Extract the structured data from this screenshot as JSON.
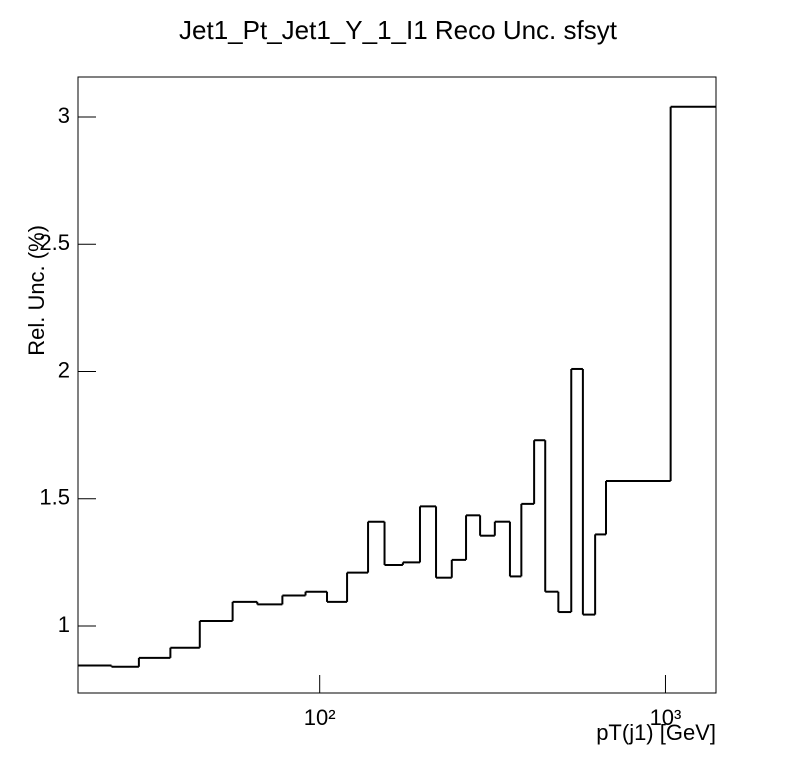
{
  "chart_data": {
    "type": "histogram_step",
    "title": "Jet1_Pt_Jet1_Y_1_I1 Reco Unc. sfsyt",
    "y_label": "Rel. Unc. (%)",
    "x_label": "pT(j1) [GeV]",
    "bins": [
      20,
      25,
      30,
      37,
      45,
      56,
      66,
      78,
      91,
      105,
      120,
      138,
      154,
      174,
      195,
      217,
      241,
      265,
      291,
      321,
      355,
      383,
      417,
      449,
      490,
      534,
      577,
      626,
      673,
      1035,
      1400
    ],
    "values": [
      0.845,
      0.84,
      0.875,
      0.915,
      1.02,
      1.095,
      1.085,
      1.12,
      1.135,
      1.095,
      1.21,
      1.41,
      1.24,
      1.25,
      1.47,
      1.19,
      1.26,
      1.435,
      1.355,
      1.41,
      1.195,
      1.48,
      1.73,
      1.135,
      1.055,
      2.01,
      1.045,
      1.36,
      1.57,
      3.04
    ],
    "color": "#000000",
    "xlog": true,
    "xlim": [
      20,
      1400
    ],
    "ylim": [
      0.737,
      3.157
    ],
    "xticks": [
      {
        "value": 100,
        "label": "10²"
      },
      {
        "value": 1000,
        "label": "10³"
      }
    ],
    "yticks": [
      1,
      {
        "value": 1.5,
        "label": "1.5"
      },
      2,
      {
        "value": 2.5,
        "label": "2.5"
      },
      3
    ]
  }
}
